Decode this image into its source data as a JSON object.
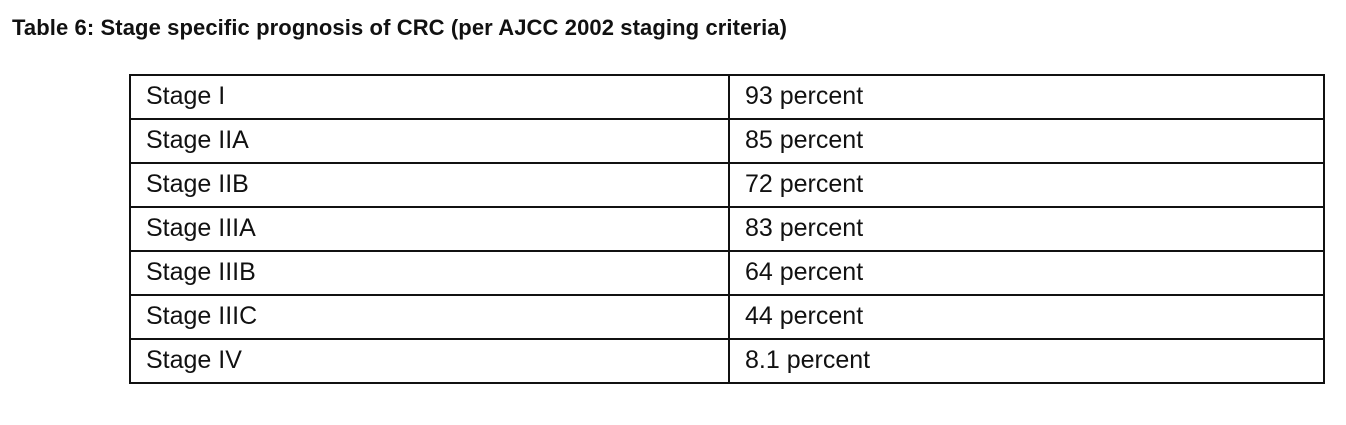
{
  "caption": "Table 6: Stage specific prognosis of CRC (per AJCC 2002 staging criteria)",
  "rows": [
    {
      "stage": "Stage I",
      "value": "93 percent"
    },
    {
      "stage": "Stage IIA",
      "value": "85 percent"
    },
    {
      "stage": "Stage IIB",
      "value": "72 percent"
    },
    {
      "stage": "Stage IIIA",
      "value": "83 percent"
    },
    {
      "stage": "Stage IIIB",
      "value": "64 percent"
    },
    {
      "stage": "Stage IIIC",
      "value": "44 percent"
    },
    {
      "stage": "Stage IV",
      "value": "8.1 percent"
    }
  ]
}
